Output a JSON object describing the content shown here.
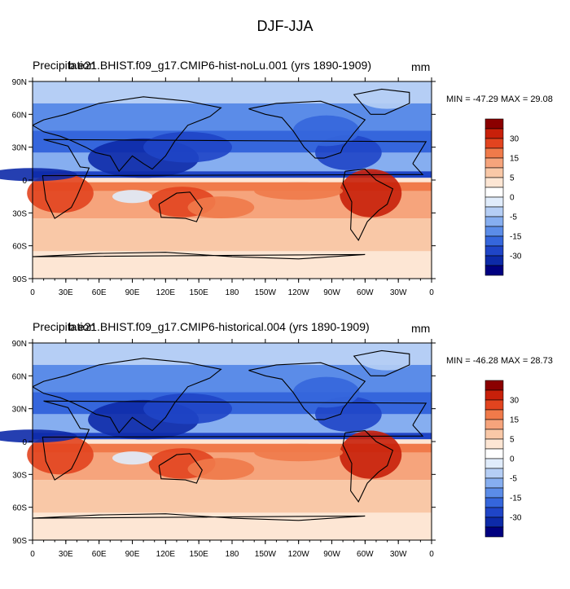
{
  "figure": {
    "title": "DJF-JJA"
  },
  "panels": [
    {
      "left_title_a": "Precipitation",
      "left_title_b": "b.e21.BHIST.f09_g17.CMIP6-hist-noLu.001 (yrs 1890-1909)",
      "units": "mm",
      "minmax": "MIN = -47.29 MAX =  29.08"
    },
    {
      "left_title_a": "Precipitation",
      "left_title_b": "b.e21.BHIST.f09_g17.CMIP6-historical.004 (yrs 1890-1909)",
      "units": "mm",
      "minmax": "MIN = -46.28 MAX =  28.73"
    }
  ],
  "axes": {
    "x_ticks": [
      "0",
      "30E",
      "60E",
      "90E",
      "120E",
      "150E",
      "180",
      "150W",
      "120W",
      "90W",
      "60W",
      "30W",
      "0"
    ],
    "y_ticks": [
      "90N",
      "60N",
      "30N",
      "0",
      "30S",
      "60S",
      "90S"
    ]
  },
  "colorbar": {
    "labels": [
      "30",
      "15",
      "5",
      "0",
      "-5",
      "-15",
      "-30"
    ],
    "colors": [
      "#8b0000",
      "#c8200a",
      "#e2441f",
      "#f07a4a",
      "#f6a47c",
      "#f9c8a7",
      "#fde6d4",
      "#ffffff",
      "#e0ecfb",
      "#b5cef5",
      "#86aef0",
      "#5b8ce8",
      "#3566dc",
      "#1f45c7",
      "#0d2aa8",
      "#000080"
    ]
  },
  "chart_data": [
    {
      "type": "heatmap",
      "title": "b.e21.BHIST.f09_g17.CMIP6-hist-noLu.001 (yrs 1890-1909)",
      "variable": "Precipitation",
      "units": "mm",
      "x": [
        "0",
        "30E",
        "60E",
        "90E",
        "120E",
        "150E",
        "180",
        "150W",
        "120W",
        "90W",
        "60W",
        "30W",
        "0"
      ],
      "y": [
        "90N",
        "60N",
        "30N",
        "0",
        "30S",
        "60S",
        "90S"
      ],
      "min": -47.29,
      "max": 29.08,
      "colorbar_levels": [
        -30,
        -15,
        -5,
        0,
        5,
        15,
        30
      ]
    },
    {
      "type": "heatmap",
      "title": "b.e21.BHIST.f09_g17.CMIP6-historical.004 (yrs 1890-1909)",
      "variable": "Precipitation",
      "units": "mm",
      "x": [
        "0",
        "30E",
        "60E",
        "90E",
        "120E",
        "150E",
        "180",
        "150W",
        "120W",
        "90W",
        "60W",
        "30W",
        "0"
      ],
      "y": [
        "90N",
        "60N",
        "30N",
        "0",
        "30S",
        "60S",
        "90S"
      ],
      "min": -46.28,
      "max": 28.73,
      "colorbar_levels": [
        -30,
        -15,
        -5,
        0,
        5,
        15,
        30
      ]
    }
  ]
}
